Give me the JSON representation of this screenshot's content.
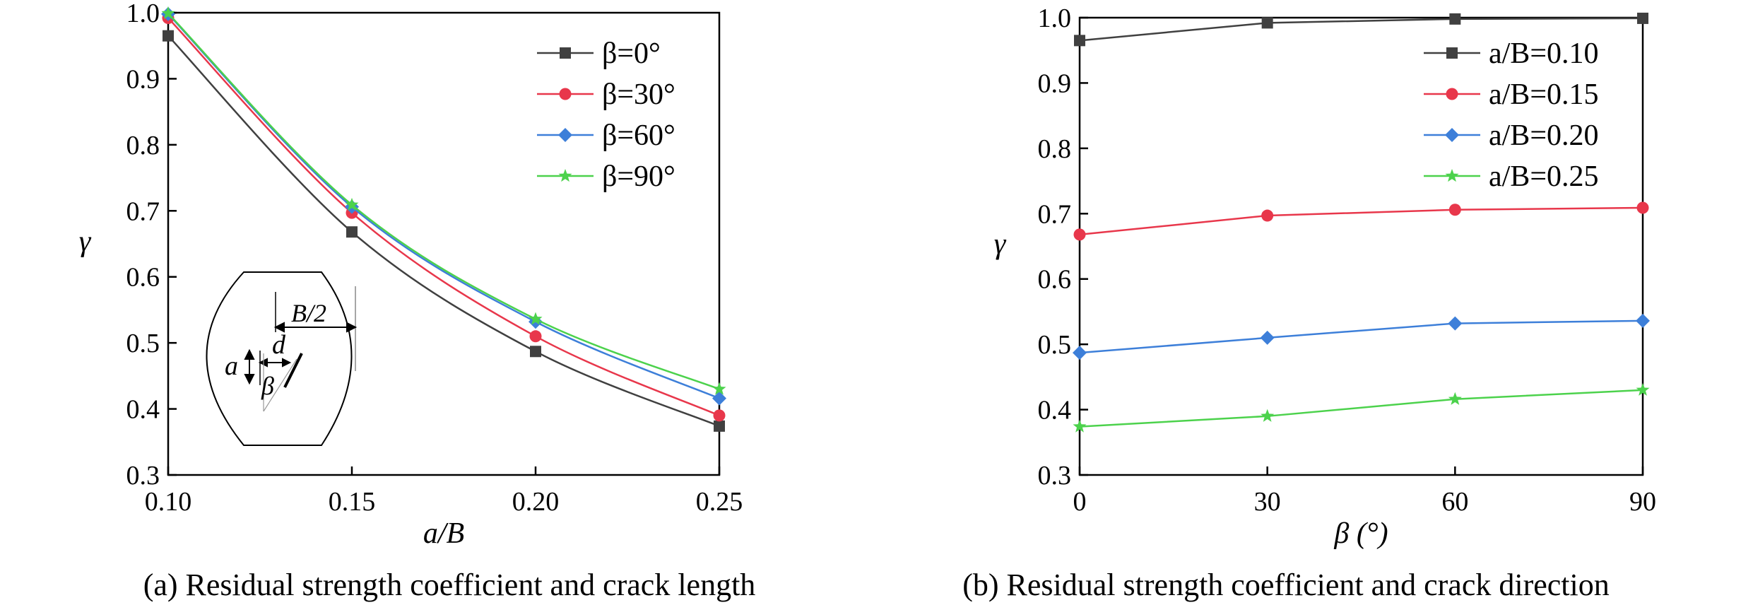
{
  "chart_data": [
    {
      "type": "line",
      "panel": "a",
      "caption": "(a) Residual strength coefficient and crack length",
      "xlabel": "a/B",
      "ylabel": "γ",
      "xlim": [
        0.1,
        0.25
      ],
      "ylim": [
        0.3,
        1.0
      ],
      "xticks": [
        "0.10",
        "0.15",
        "0.20",
        "0.25"
      ],
      "yticks": [
        "0.3",
        "0.4",
        "0.5",
        "0.6",
        "0.7",
        "0.8",
        "0.9",
        "1.0"
      ],
      "x": [
        0.1,
        0.15,
        0.2,
        0.25
      ],
      "legend_position": "top-right",
      "grid": false,
      "series": [
        {
          "name": "β=0°",
          "color": "#404040",
          "marker": "square",
          "values": [
            0.965,
            0.668,
            0.487,
            0.374
          ]
        },
        {
          "name": "β=30°",
          "color": "#e8374b",
          "marker": "circle",
          "values": [
            0.992,
            0.697,
            0.51,
            0.39
          ]
        },
        {
          "name": "β=60°",
          "color": "#3d7fd9",
          "marker": "diamond",
          "values": [
            0.998,
            0.706,
            0.532,
            0.416
          ]
        },
        {
          "name": "β=90°",
          "color": "#4cd24c",
          "marker": "star",
          "values": [
            0.999,
            0.709,
            0.536,
            0.43
          ]
        }
      ],
      "inset_labels": {
        "width": "B/2",
        "crack_length": "a",
        "distance": "d",
        "angle": "β"
      }
    },
    {
      "type": "line",
      "panel": "b",
      "caption": "(b) Residual strength coefficient and crack direction",
      "xlabel": "β (°)",
      "ylabel": "γ",
      "xlim": [
        0,
        90
      ],
      "ylim": [
        0.3,
        1.0
      ],
      "xticks": [
        "0",
        "30",
        "60",
        "90"
      ],
      "yticks": [
        "0.3",
        "0.4",
        "0.5",
        "0.6",
        "0.7",
        "0.8",
        "0.9",
        "1.0"
      ],
      "x": [
        0,
        30,
        60,
        90
      ],
      "legend_position": "top-right",
      "grid": false,
      "series": [
        {
          "name": "a/B=0.10",
          "color": "#404040",
          "marker": "square",
          "values": [
            0.965,
            0.992,
            0.998,
            0.999
          ]
        },
        {
          "name": "a/B=0.15",
          "color": "#e8374b",
          "marker": "circle",
          "values": [
            0.668,
            0.697,
            0.706,
            0.709
          ]
        },
        {
          "name": "a/B=0.20",
          "color": "#3d7fd9",
          "marker": "diamond",
          "values": [
            0.487,
            0.51,
            0.532,
            0.536
          ]
        },
        {
          "name": "a/B=0.25",
          "color": "#4cd24c",
          "marker": "star",
          "values": [
            0.374,
            0.39,
            0.416,
            0.43
          ]
        }
      ]
    }
  ]
}
